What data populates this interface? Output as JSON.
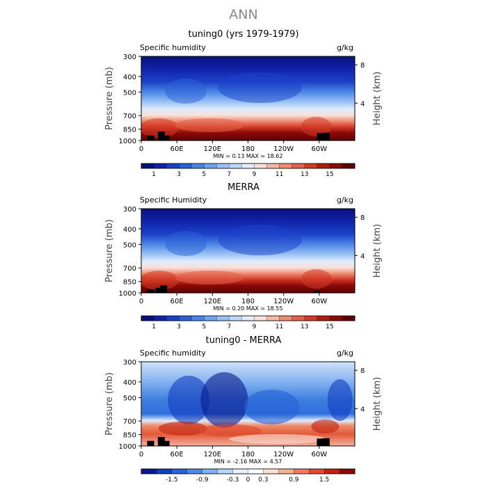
{
  "figure": {
    "title": "ANN"
  },
  "colors": {
    "full_field": [
      "#08107a",
      "#0f22a8",
      "#1b41c8",
      "#2c62d8",
      "#4a84e4",
      "#6ea3ee",
      "#98c1f4",
      "#bfd8f8",
      "#e2ecfa",
      "#f8e0d8",
      "#f4b9a6",
      "#ee8d73",
      "#e4614a",
      "#d23a26",
      "#b01c10",
      "#8a0a08",
      "#5e0202"
    ],
    "difference": [
      "#0a1a8c",
      "#143ec0",
      "#2563d6",
      "#4a8ae6",
      "#80b0f0",
      "#b8d6f8",
      "#e6f0fc",
      "#ffffff",
      "#fce0d4",
      "#f8b096",
      "#f07c5c",
      "#e04a2e",
      "#c22210",
      "#8c0a06"
    ],
    "topography": "#000000"
  },
  "chart_data": [
    {
      "type": "heatmap",
      "title": "tuning0 (yrs 1979-1979)",
      "top_left_label": "Specific humidity",
      "units": "g/kg",
      "ylabel": "Pressure (mb)",
      "ylabel_right": "Height (km)",
      "x_ticks": [
        "0",
        "60E",
        "120E",
        "180",
        "120W",
        "60W"
      ],
      "x_tick_lon": [
        0,
        60,
        120,
        180,
        240,
        300
      ],
      "xlim": [
        0,
        360
      ],
      "y_ticks": [
        300,
        400,
        500,
        700,
        850,
        1000
      ],
      "ylim": [
        1000,
        300
      ],
      "y_scale": "log",
      "right_ticks": [
        8,
        4
      ],
      "min_label": "MIN = ",
      "min": "0.13",
      "max_label": "MAX = ",
      "max": "18.62",
      "colorbar_labels": [
        "1",
        "3",
        "5",
        "7",
        "9",
        "11",
        "13",
        "15"
      ],
      "colorbar_levels": [
        0,
        1,
        2,
        3,
        4,
        5,
        6,
        7,
        8,
        9,
        10,
        11,
        12,
        13,
        14,
        15,
        16,
        17
      ],
      "topography": [
        [
          10,
          930
        ],
        [
          28,
          880
        ],
        [
          36,
          930
        ],
        [
          296,
          900
        ],
        [
          306,
          895
        ]
      ]
    },
    {
      "type": "heatmap",
      "title": "MERRA",
      "top_left_label": "Specific Humidity",
      "units": "g/kg",
      "ylabel": "Pressure (mb)",
      "ylabel_right": "Height (km)",
      "x_ticks": [
        "0",
        "60E",
        "120E",
        "180",
        "120W",
        "60W"
      ],
      "x_tick_lon": [
        0,
        60,
        120,
        180,
        240,
        300
      ],
      "xlim": [
        0,
        360
      ],
      "y_ticks": [
        300,
        400,
        500,
        700,
        850,
        1000
      ],
      "ylim": [
        1000,
        300
      ],
      "y_scale": "log",
      "right_ticks": [
        8,
        4
      ],
      "min_label": "MIN = ",
      "min": "0.20",
      "max_label": "MAX = ",
      "max": "18.55",
      "colorbar_labels": [
        "1",
        "3",
        "5",
        "7",
        "9",
        "11",
        "13",
        "15"
      ],
      "colorbar_levels": [
        0,
        1,
        2,
        3,
        4,
        5,
        6,
        7,
        8,
        9,
        10,
        11,
        12,
        13,
        14,
        15,
        16,
        17
      ],
      "topography": [
        [
          10,
          950
        ],
        [
          24,
          930
        ],
        [
          32,
          900
        ],
        [
          290,
          970
        ]
      ]
    },
    {
      "type": "heatmap",
      "title": "tuning0 - MERRA",
      "top_left_label": "Specific humidity",
      "units": "g/kg",
      "ylabel": "Pressure (mb)",
      "ylabel_right": "Height (km)",
      "x_ticks": [
        "0",
        "60E",
        "120E",
        "180",
        "120W",
        "60W"
      ],
      "x_tick_lon": [
        0,
        60,
        120,
        180,
        240,
        300
      ],
      "xlim": [
        0,
        360
      ],
      "y_ticks": [
        300,
        400,
        500,
        700,
        850,
        1000
      ],
      "ylim": [
        1000,
        300
      ],
      "y_scale": "log",
      "right_ticks": [
        8,
        4
      ],
      "min_label": "MIN = ",
      "min": "-2.16",
      "max_label": "MAX = ",
      "max": "4.57",
      "colorbar_labels": [
        "-1.5",
        "-0.9",
        "-0.3",
        "0",
        "0.3",
        "0.9",
        "1.5"
      ],
      "colorbar_levels": [
        -2.1,
        -1.8,
        -1.5,
        -1.2,
        -0.9,
        -0.6,
        -0.3,
        0,
        0.3,
        0.6,
        0.9,
        1.2,
        1.5,
        1.8,
        2.1
      ],
      "topography": [
        [
          10,
          930
        ],
        [
          28,
          880
        ],
        [
          36,
          930
        ],
        [
          296,
          900
        ],
        [
          306,
          895
        ]
      ]
    }
  ]
}
